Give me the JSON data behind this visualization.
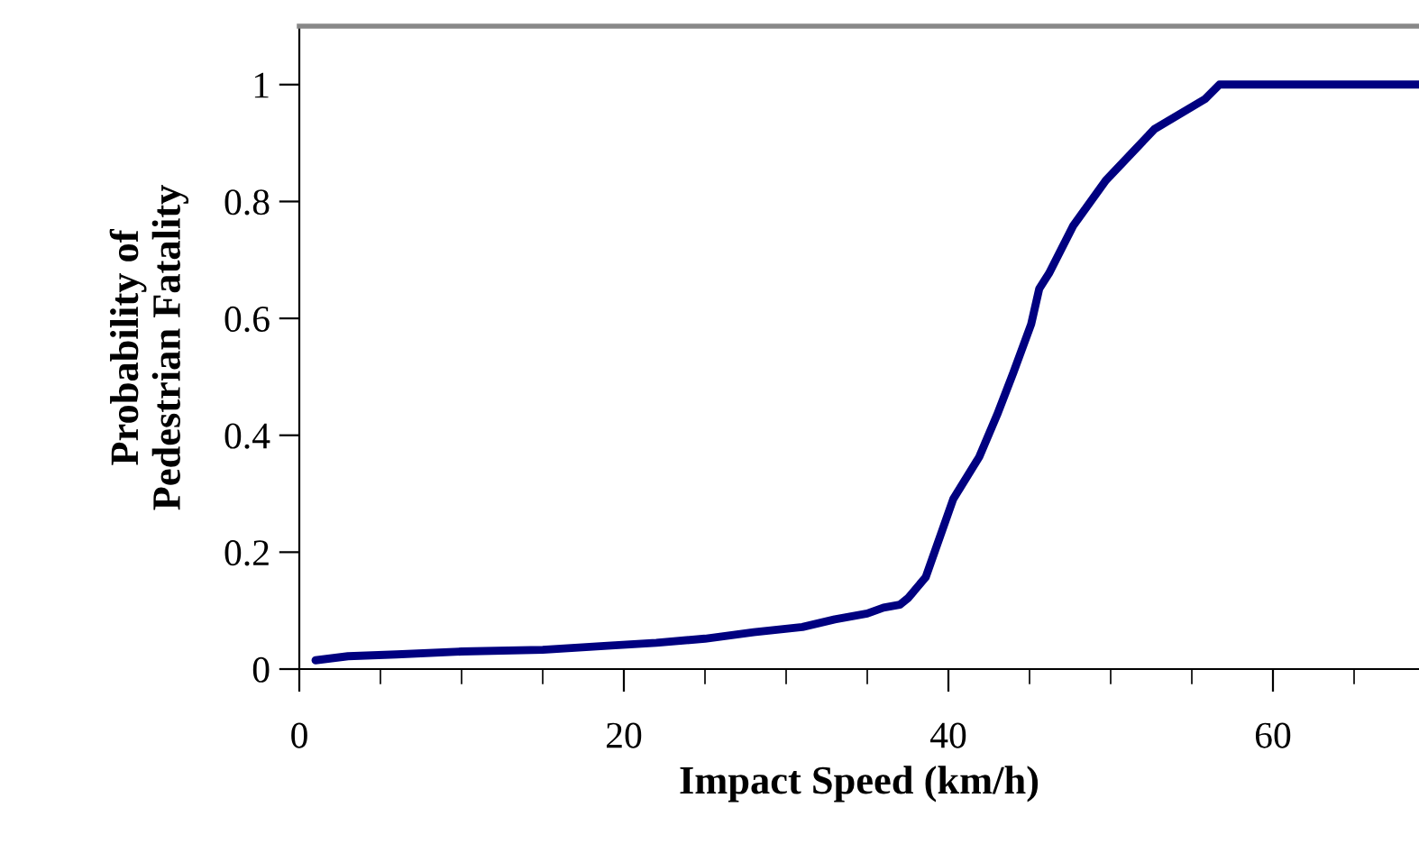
{
  "chart_data": {
    "type": "line",
    "xlabel": "Impact Speed (km/h)",
    "ylabel": "Probability of\nPedestrian Fatality",
    "series": [
      {
        "color": "#000080",
        "x": [
          1,
          3,
          6,
          10,
          15,
          19,
          22,
          25,
          28,
          31,
          33,
          35,
          36,
          37,
          37.5,
          38.6,
          40.3,
          41.9,
          43.0,
          44.0,
          45.1,
          45.6,
          46.2,
          47.7,
          49.7,
          52.7,
          55.8,
          56.7,
          69
        ],
        "values": [
          0.015,
          0.022,
          0.025,
          0.03,
          0.033,
          0.04,
          0.045,
          0.052,
          0.063,
          0.072,
          0.085,
          0.095,
          0.105,
          0.11,
          0.121,
          0.157,
          0.291,
          0.363,
          0.435,
          0.507,
          0.59,
          0.651,
          0.677,
          0.759,
          0.836,
          0.924,
          0.975,
          1.0,
          1.0
        ]
      }
    ],
    "xlim": [
      0,
      69
    ],
    "ylim": [
      0,
      1.1
    ],
    "xticks": [
      0,
      20,
      40,
      60
    ],
    "yticks": [
      0,
      0.2,
      0.4,
      0.6,
      0.8,
      1
    ],
    "grid": false,
    "legend": false,
    "marker": "none",
    "line_style": "solid"
  }
}
